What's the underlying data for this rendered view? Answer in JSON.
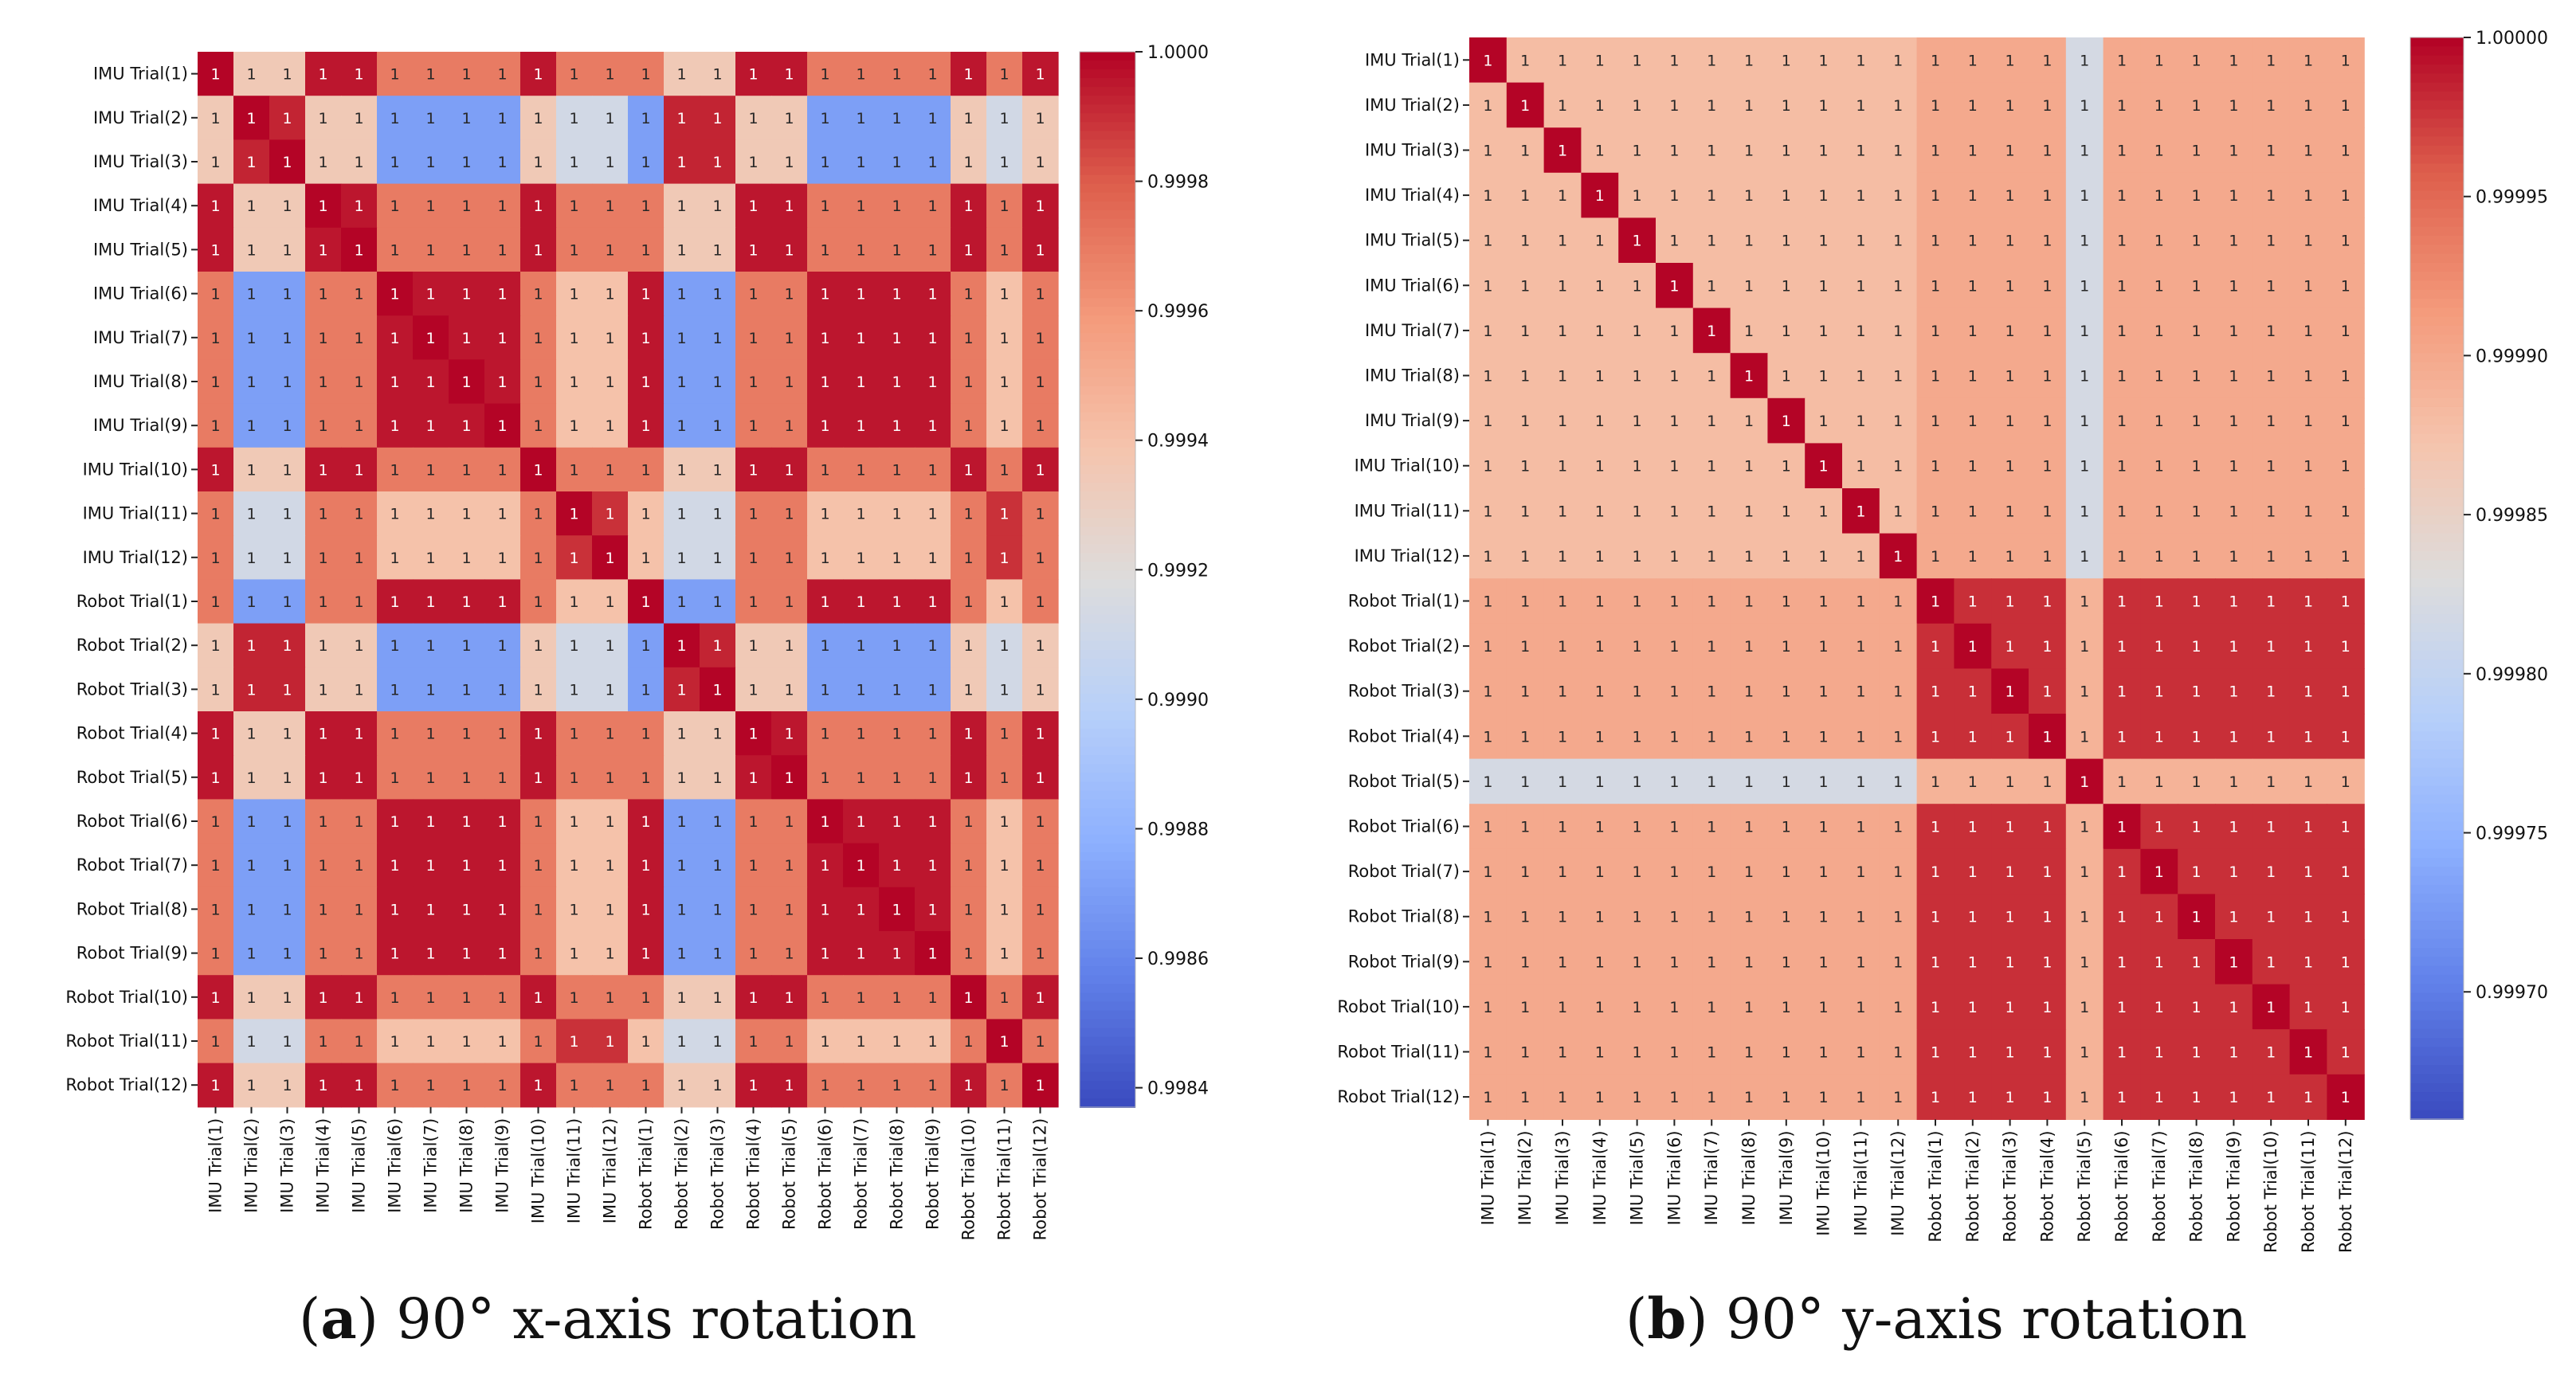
{
  "figure": {
    "panels": [
      {
        "letter": "a",
        "caption": ") 90° x-axis rotation"
      },
      {
        "letter": "b",
        "caption": ") 90° y-axis rotation"
      }
    ]
  },
  "colors": {
    "cold": "#3b4cc0",
    "neutral": "#dddcdc",
    "hot": "#b40426",
    "label": "#111111"
  },
  "chart_data": [
    {
      "type": "heatmap",
      "title": "(a) 90° x-axis rotation",
      "labels": [
        "IMU Trial(1)",
        "IMU Trial(2)",
        "IMU Trial(3)",
        "IMU Trial(4)",
        "IMU Trial(5)",
        "IMU Trial(6)",
        "IMU Trial(7)",
        "IMU Trial(8)",
        "IMU Trial(9)",
        "IMU Trial(10)",
        "IMU Trial(11)",
        "IMU Trial(12)",
        "Robot Trial(1)",
        "Robot Trial(2)",
        "Robot Trial(3)",
        "Robot Trial(4)",
        "Robot Trial(5)",
        "Robot Trial(6)",
        "Robot Trial(7)",
        "Robot Trial(8)",
        "Robot Trial(9)",
        "Robot Trial(10)",
        "Robot Trial(11)",
        "Robot Trial(12)"
      ],
      "cell_text": "1",
      "vmin": 0.99837,
      "vmax": 1.0,
      "colorbar_ticks": [
        1.0,
        0.9998,
        0.9996,
        0.9994,
        0.9992,
        0.999,
        0.9988,
        0.9986,
        0.9984
      ],
      "colorbar_tick_labels": [
        "1.0000",
        "0.9998",
        "0.9996",
        "0.9994",
        "0.9992",
        "0.9990",
        "0.9988",
        "0.9986",
        "0.9984"
      ],
      "groups": {
        "A": [
          0,
          3,
          4,
          9,
          15,
          16,
          21,
          23
        ],
        "B": [
          1,
          2,
          13,
          14
        ],
        "C": [
          5,
          6,
          7,
          8,
          12,
          17,
          18,
          19,
          20
        ],
        "D": [
          10,
          11,
          22
        ]
      },
      "group_matrix": {
        "A": {
          "A": 0.99996,
          "B": 0.99935,
          "C": 0.9997,
          "D": 0.9997
        },
        "B": {
          "A": 0.99935,
          "B": 0.99993,
          "C": 0.9987,
          "D": 0.99912
        },
        "C": {
          "A": 0.9997,
          "B": 0.9987,
          "C": 0.99996,
          "D": 0.9994
        },
        "D": {
          "A": 0.9997,
          "B": 0.99912,
          "C": 0.9994,
          "D": 0.9999
        }
      },
      "value_notes": "Cell value = group_matrix of row group vs column group; diagonal = 1.0000; every cell annotated '1'."
    },
    {
      "type": "heatmap",
      "title": "(b) 90° y-axis rotation",
      "labels": [
        "IMU Trial(1)",
        "IMU Trial(2)",
        "IMU Trial(3)",
        "IMU Trial(4)",
        "IMU Trial(5)",
        "IMU Trial(6)",
        "IMU Trial(7)",
        "IMU Trial(8)",
        "IMU Trial(9)",
        "IMU Trial(10)",
        "IMU Trial(11)",
        "IMU Trial(12)",
        "Robot Trial(1)",
        "Robot Trial(2)",
        "Robot Trial(3)",
        "Robot Trial(4)",
        "Robot Trial(5)",
        "Robot Trial(6)",
        "Robot Trial(7)",
        "Robot Trial(8)",
        "Robot Trial(9)",
        "Robot Trial(10)",
        "Robot Trial(11)",
        "Robot Trial(12)"
      ],
      "cell_text": "1",
      "vmin": 0.99966,
      "vmax": 1.0,
      "colorbar_ticks": [
        1.0,
        0.99995,
        0.9999,
        0.99985,
        0.9998,
        0.99975,
        0.9997
      ],
      "colorbar_tick_labels": [
        "1.00000",
        "0.99995",
        "0.99990",
        "0.99985",
        "0.99980",
        "0.99975",
        "0.99970"
      ],
      "groups": {
        "I": [
          0,
          1,
          2,
          3,
          4,
          5,
          6,
          7,
          8,
          9,
          10,
          11
        ],
        "R": [
          12,
          13,
          14,
          15,
          17,
          18,
          19,
          20,
          21,
          22,
          23
        ],
        "R5": [
          16
        ]
      },
      "group_matrix": {
        "I": {
          "I": 0.99988,
          "R": 0.9999,
          "R5": 0.99982
        },
        "R": {
          "I": 0.9999,
          "R": 0.99998,
          "R5": 0.99989
        },
        "R5": {
          "I": 0.99982,
          "R": 0.99989,
          "R5": 1.0
        }
      },
      "value_notes": "Cell value = group_matrix of row group vs column group; diagonal = 1.0000; every cell annotated '1'."
    }
  ]
}
